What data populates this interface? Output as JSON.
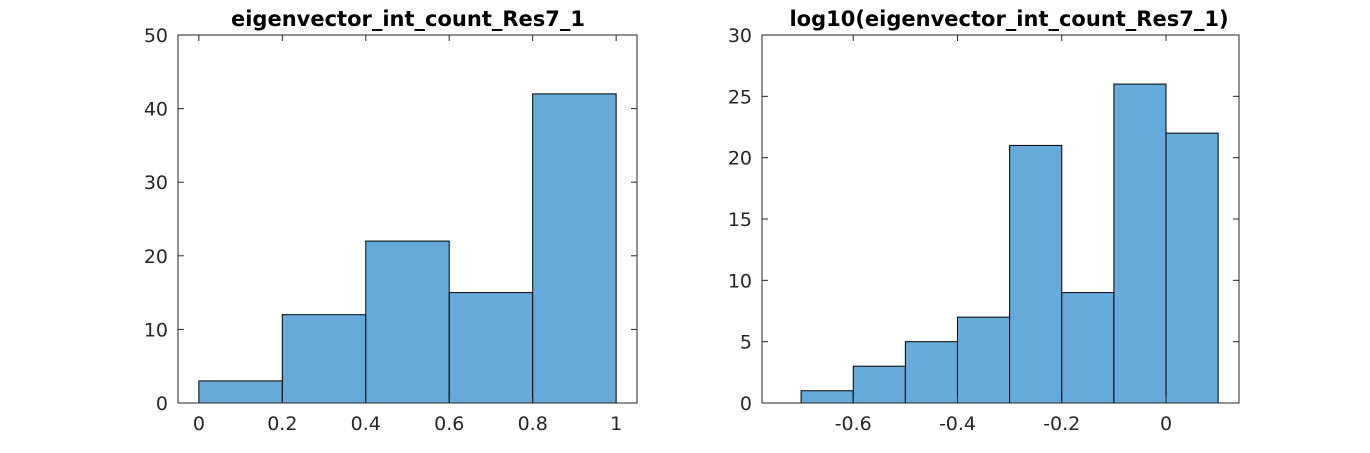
{
  "chart_data": [
    {
      "type": "histogram",
      "title": "eigenvector_int_count_Res7_1",
      "bin_edges": [
        0,
        0.2,
        0.4,
        0.6,
        0.8,
        1.0
      ],
      "counts": [
        3,
        12,
        22,
        15,
        42
      ],
      "xlim": [
        -0.05,
        1.05
      ],
      "ylim": [
        0,
        50
      ],
      "xticks": [
        0,
        0.2,
        0.4,
        0.6,
        0.8,
        1
      ],
      "xtick_labels": [
        "0",
        "0.2",
        "0.4",
        "0.6",
        "0.8",
        "1"
      ],
      "yticks": [
        0,
        10,
        20,
        30,
        40,
        50
      ],
      "ytick_labels": [
        "0",
        "10",
        "20",
        "30",
        "40",
        "50"
      ],
      "bar_color": "#66AADA",
      "grid": false
    },
    {
      "type": "histogram",
      "title": "log10(eigenvector_int_count_Res7_1)",
      "bin_edges": [
        -0.7,
        -0.6,
        -0.5,
        -0.4,
        -0.3,
        -0.2,
        -0.1,
        0.0,
        0.1
      ],
      "counts": [
        1,
        3,
        5,
        7,
        21,
        9,
        26,
        22
      ],
      "xlim": [
        -0.775,
        0.14
      ],
      "ylim": [
        0,
        30
      ],
      "xticks": [
        -0.6,
        -0.4,
        -0.2,
        0
      ],
      "xtick_labels": [
        "-0.6",
        "-0.4",
        "-0.2",
        "0"
      ],
      "yticks": [
        0,
        5,
        10,
        15,
        20,
        25,
        30
      ],
      "ytick_labels": [
        "0",
        "5",
        "10",
        "15",
        "20",
        "25",
        "30"
      ],
      "bar_color": "#66AADA",
      "grid": false
    }
  ]
}
